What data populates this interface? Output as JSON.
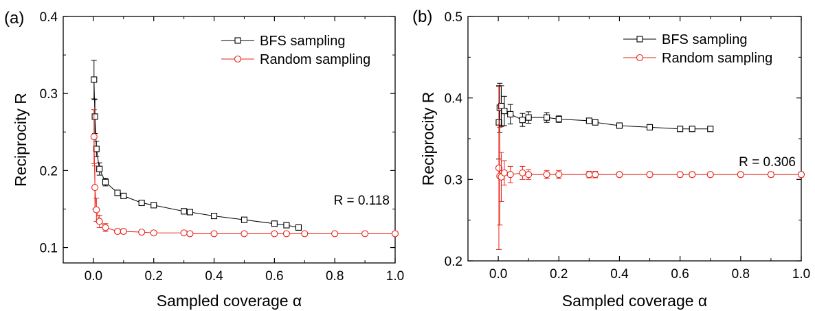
{
  "chart_data": [
    {
      "type": "line",
      "panel_label": "(a)",
      "xlabel": "Sampled coverage α",
      "ylabel": "Reciprocity R",
      "xlim": [
        -0.1,
        1.0
      ],
      "ylim": [
        0.08,
        0.4
      ],
      "xticks": [
        0.0,
        0.2,
        0.4,
        0.6,
        0.8,
        1.0
      ],
      "xtick_labels": [
        "0.0",
        "0.2",
        "0.4",
        "0.6",
        "0.8",
        "1.0"
      ],
      "yticks": [
        0.1,
        0.2,
        0.3,
        0.4
      ],
      "ytick_labels": [
        "0.1",
        "0.2",
        "0.3",
        "0.4"
      ],
      "grid": false,
      "legend_position": "top-right",
      "annotation": "R = 0.118",
      "series": [
        {
          "name": "BFS sampling",
          "color": "#000000",
          "marker": "square",
          "points": [
            {
              "x": 0.002,
              "y": 0.318,
              "err": 0.025
            },
            {
              "x": 0.005,
              "y": 0.27,
              "err": 0.022
            },
            {
              "x": 0.01,
              "y": 0.228,
              "err": 0.01
            },
            {
              "x": 0.02,
              "y": 0.202,
              "err": 0.008
            },
            {
              "x": 0.04,
              "y": 0.185,
              "err": 0.005
            },
            {
              "x": 0.08,
              "y": 0.171,
              "err": 0.003
            },
            {
              "x": 0.1,
              "y": 0.167,
              "err": 0.003
            },
            {
              "x": 0.16,
              "y": 0.158,
              "err": 0.002
            },
            {
              "x": 0.2,
              "y": 0.155,
              "err": 0.002
            },
            {
              "x": 0.3,
              "y": 0.147,
              "err": 0.002
            },
            {
              "x": 0.32,
              "y": 0.146,
              "err": 0.002
            },
            {
              "x": 0.4,
              "y": 0.141,
              "err": 0.002
            },
            {
              "x": 0.5,
              "y": 0.136,
              "err": 0.002
            },
            {
              "x": 0.6,
              "y": 0.131,
              "err": 0.002
            },
            {
              "x": 0.64,
              "y": 0.129,
              "err": 0.002
            },
            {
              "x": 0.68,
              "y": 0.126,
              "err": 0.002
            }
          ]
        },
        {
          "name": "Random sampling",
          "color": "#e8231a",
          "marker": "circle",
          "points": [
            {
              "x": 0.002,
              "y": 0.244,
              "err": 0.035
            },
            {
              "x": 0.005,
              "y": 0.178,
              "err": 0.028
            },
            {
              "x": 0.01,
              "y": 0.149,
              "err": 0.015
            },
            {
              "x": 0.02,
              "y": 0.134,
              "err": 0.008
            },
            {
              "x": 0.04,
              "y": 0.126,
              "err": 0.005
            },
            {
              "x": 0.08,
              "y": 0.121,
              "err": 0.003
            },
            {
              "x": 0.1,
              "y": 0.121,
              "err": 0.003
            },
            {
              "x": 0.16,
              "y": 0.12,
              "err": 0.002
            },
            {
              "x": 0.2,
              "y": 0.119,
              "err": 0.002
            },
            {
              "x": 0.3,
              "y": 0.119,
              "err": 0.002
            },
            {
              "x": 0.32,
              "y": 0.118,
              "err": 0.002
            },
            {
              "x": 0.4,
              "y": 0.118,
              "err": 0.002
            },
            {
              "x": 0.5,
              "y": 0.118,
              "err": 0.002
            },
            {
              "x": 0.6,
              "y": 0.118,
              "err": 0.002
            },
            {
              "x": 0.64,
              "y": 0.118,
              "err": 0.002
            },
            {
              "x": 0.7,
              "y": 0.118,
              "err": 0.002
            },
            {
              "x": 0.8,
              "y": 0.118,
              "err": 0.002
            },
            {
              "x": 0.9,
              "y": 0.118,
              "err": 0.002
            },
            {
              "x": 1.0,
              "y": 0.118,
              "err": 0.002
            }
          ]
        }
      ]
    },
    {
      "type": "line",
      "panel_label": "(b)",
      "xlabel": "Sampled coverage α",
      "ylabel": "Reciprocity R",
      "xlim": [
        -0.1,
        1.0
      ],
      "ylim": [
        0.2,
        0.5
      ],
      "xticks": [
        0.0,
        0.2,
        0.4,
        0.6,
        0.8,
        1.0
      ],
      "xtick_labels": [
        "0.0",
        "0.2",
        "0.4",
        "0.6",
        "0.8",
        "1.0"
      ],
      "yticks": [
        0.2,
        0.3,
        0.4,
        0.5
      ],
      "ytick_labels": [
        "0.2",
        "0.3",
        "0.4",
        "0.5"
      ],
      "grid": false,
      "legend_position": "top-right",
      "annotation": "R = 0.306",
      "series": [
        {
          "name": "BFS sampling",
          "color": "#000000",
          "marker": "square",
          "points": [
            {
              "x": 0.002,
              "y": 0.37,
              "err": 0.045
            },
            {
              "x": 0.005,
              "y": 0.388,
              "err": 0.03
            },
            {
              "x": 0.01,
              "y": 0.39,
              "err": 0.025
            },
            {
              "x": 0.02,
              "y": 0.384,
              "err": 0.018
            },
            {
              "x": 0.04,
              "y": 0.38,
              "err": 0.012
            },
            {
              "x": 0.08,
              "y": 0.373,
              "err": 0.008
            },
            {
              "x": 0.1,
              "y": 0.376,
              "err": 0.007
            },
            {
              "x": 0.16,
              "y": 0.376,
              "err": 0.006
            },
            {
              "x": 0.2,
              "y": 0.374,
              "err": 0.004
            },
            {
              "x": 0.3,
              "y": 0.372,
              "err": 0.003
            },
            {
              "x": 0.32,
              "y": 0.37,
              "err": 0.003
            },
            {
              "x": 0.4,
              "y": 0.366,
              "err": 0.003
            },
            {
              "x": 0.5,
              "y": 0.364,
              "err": 0.003
            },
            {
              "x": 0.6,
              "y": 0.362,
              "err": 0.003
            },
            {
              "x": 0.64,
              "y": 0.362,
              "err": 0.003
            },
            {
              "x": 0.7,
              "y": 0.362,
              "err": 0.003
            }
          ]
        },
        {
          "name": "Random sampling",
          "color": "#e8231a",
          "marker": "circle",
          "points": [
            {
              "x": 0.002,
              "y": 0.314,
              "err": 0.1
            },
            {
              "x": 0.005,
              "y": 0.304,
              "err": 0.06
            },
            {
              "x": 0.01,
              "y": 0.303,
              "err": 0.03
            },
            {
              "x": 0.02,
              "y": 0.308,
              "err": 0.015
            },
            {
              "x": 0.04,
              "y": 0.306,
              "err": 0.01
            },
            {
              "x": 0.08,
              "y": 0.308,
              "err": 0.008
            },
            {
              "x": 0.1,
              "y": 0.306,
              "err": 0.006
            },
            {
              "x": 0.16,
              "y": 0.306,
              "err": 0.005
            },
            {
              "x": 0.2,
              "y": 0.306,
              "err": 0.005
            },
            {
              "x": 0.3,
              "y": 0.306,
              "err": 0.004
            },
            {
              "x": 0.32,
              "y": 0.306,
              "err": 0.004
            },
            {
              "x": 0.4,
              "y": 0.306,
              "err": 0.003
            },
            {
              "x": 0.5,
              "y": 0.306,
              "err": 0.003
            },
            {
              "x": 0.6,
              "y": 0.306,
              "err": 0.003
            },
            {
              "x": 0.64,
              "y": 0.306,
              "err": 0.003
            },
            {
              "x": 0.7,
              "y": 0.306,
              "err": 0.003
            },
            {
              "x": 0.8,
              "y": 0.306,
              "err": 0.003
            },
            {
              "x": 0.9,
              "y": 0.306,
              "err": 0.003
            },
            {
              "x": 1.0,
              "y": 0.306,
              "err": 0.003
            }
          ]
        }
      ]
    }
  ]
}
